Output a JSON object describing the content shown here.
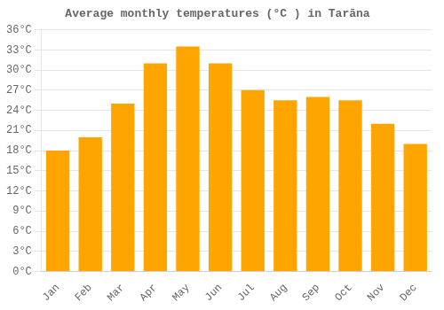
{
  "chart_data": {
    "type": "bar",
    "title": "Average monthly temperatures (°C ) in Tarāna",
    "categories": [
      "Jan",
      "Feb",
      "Mar",
      "Apr",
      "May",
      "Jun",
      "Jul",
      "Aug",
      "Sep",
      "Oct",
      "Nov",
      "Dec"
    ],
    "values": [
      18.0,
      20.0,
      25.0,
      31.0,
      33.5,
      31.0,
      27.0,
      25.5,
      26.0,
      25.5,
      22.0,
      19.0
    ],
    "color": "#FFA500",
    "ylim": [
      0,
      36
    ],
    "yticks": [
      {
        "value": 0,
        "label": "0°C"
      },
      {
        "value": 3,
        "label": "3°C"
      },
      {
        "value": 6,
        "label": "6°C"
      },
      {
        "value": 9,
        "label": "9°C"
      },
      {
        "value": 12,
        "label": "12°C"
      },
      {
        "value": 15,
        "label": "15°C"
      },
      {
        "value": 18,
        "label": "18°C"
      },
      {
        "value": 21,
        "label": "21°C"
      },
      {
        "value": 24,
        "label": "24°C"
      },
      {
        "value": 27,
        "label": "27°C"
      },
      {
        "value": 30,
        "label": "30°C"
      },
      {
        "value": 33,
        "label": "33°C"
      },
      {
        "value": 36,
        "label": "36°C"
      }
    ],
    "grid": true
  }
}
